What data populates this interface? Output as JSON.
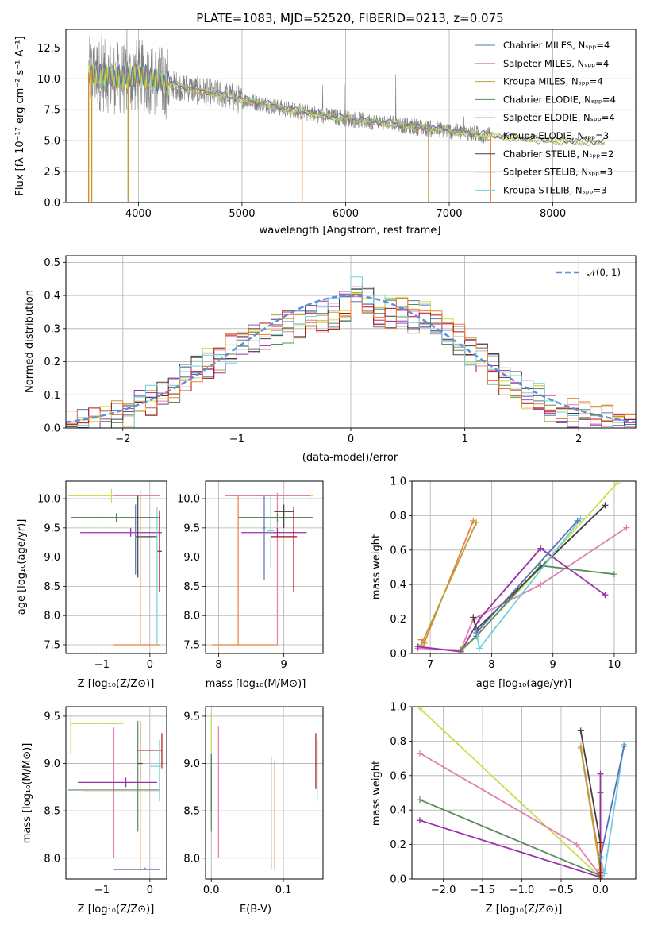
{
  "colors": {
    "grid": "#b0b0b0",
    "observed": "#808080",
    "normal_curve": "#5b8fdc",
    "models": [
      "#5a72b8",
      "#e07fb0",
      "#b8a040",
      "#5a8a5a",
      "#9a30a8",
      "#c8e050",
      "#404040",
      "#b01010",
      "#70d0d8",
      "#e8803a"
    ]
  },
  "chart_data": [
    {
      "id": "spectrum",
      "type": "line",
      "title": "PLATE=1083, MJD=52520, FIBERID=0213, z=0.075",
      "xlabel": "wavelength [Angstrom, rest frame]",
      "ylabel": "Flux [fλ 10⁻¹⁷ erg cm⁻² s⁻¹ A⁻¹]",
      "xlim": [
        3300,
        8800
      ],
      "ylim": [
        0,
        14
      ],
      "xticks": [
        "4000",
        "5000",
        "6000",
        "7000",
        "8000"
      ],
      "xtick_values": [
        4000,
        5000,
        6000,
        7000,
        8000
      ],
      "yticks": [
        "0.0",
        "2.5",
        "5.0",
        "7.5",
        "10.0",
        "12.5"
      ],
      "ytick_values": [
        0,
        2.5,
        5,
        7.5,
        10,
        12.5
      ],
      "legend_position": "top-right",
      "legend": [
        "Chabrier MILES, Nₛₚₚ=4",
        "Salpeter MILES, Nₛₚₚ=4",
        "Kroupa MILES, Nₛₚₚ=4",
        "Chabrier ELODIE, Nₛₚₚ=4",
        "Salpeter ELODIE, Nₛₚₚ=4",
        "Kroupa ELODIE, Nₛₚₚ=3",
        "Chabrier STELIB, Nₛₚₚ=2",
        "Salpeter STELIB, Nₛₚₚ=3",
        "Kroupa STELIB, Nₛₚₚ=3"
      ],
      "model_continuum": {
        "x": [
          3520,
          3700,
          3900,
          4000,
          4200,
          4400,
          4600,
          4800,
          5000,
          5200,
          5400,
          5600,
          5800,
          6000,
          6200,
          6400,
          6600,
          6800,
          7000,
          7200,
          7400,
          7600,
          7800,
          8000,
          8200,
          8400,
          8500
        ],
        "y": [
          10.5,
          10.2,
          10.0,
          10.3,
          9.8,
          9.4,
          9.0,
          8.7,
          8.3,
          8.0,
          7.6,
          7.3,
          7.0,
          6.8,
          6.6,
          6.4,
          6.2,
          6.0,
          5.8,
          5.6,
          5.4,
          5.25,
          5.15,
          5.0,
          4.95,
          4.9,
          4.85
        ]
      },
      "model_range": [
        3520,
        8500
      ],
      "observed_range": [
        3520,
        7400
      ],
      "drop_lines": [
        {
          "x": 3520,
          "color": 9
        },
        {
          "x": 3550,
          "color": 2
        },
        {
          "x": 3900,
          "color": 2
        },
        {
          "x": 5580,
          "color": 9
        },
        {
          "x": 6800,
          "color": 2
        },
        {
          "x": 7400,
          "color": 9
        }
      ]
    },
    {
      "id": "residuals",
      "type": "step",
      "xlabel": "(data-model)/error",
      "ylabel": "Normed distribution",
      "xlim": [
        -2.5,
        2.5
      ],
      "ylim": [
        0,
        0.52
      ],
      "xticks": [
        "−2",
        "−1",
        "0",
        "1",
        "2"
      ],
      "xtick_values": [
        -2,
        -1,
        0,
        1,
        2
      ],
      "yticks": [
        "0.0",
        "0.1",
        "0.2",
        "0.3",
        "0.4",
        "0.5"
      ],
      "ytick_values": [
        0,
        0.1,
        0.2,
        0.3,
        0.4,
        0.5
      ],
      "legend_position": "top-right",
      "legend": [
        "𝒩(0, 1)"
      ],
      "bin_width": 0.1,
      "bin_start": -2.5,
      "base_hist": [
        0.03,
        0.035,
        0.04,
        0.05,
        0.06,
        0.07,
        0.09,
        0.11,
        0.13,
        0.15,
        0.18,
        0.2,
        0.22,
        0.24,
        0.26,
        0.28,
        0.29,
        0.3,
        0.32,
        0.33,
        0.34,
        0.35,
        0.36,
        0.37,
        0.39,
        0.44,
        0.4,
        0.38,
        0.37,
        0.37,
        0.36,
        0.36,
        0.34,
        0.32,
        0.29,
        0.26,
        0.23,
        0.2,
        0.17,
        0.15,
        0.13,
        0.11,
        0.09,
        0.08,
        0.07,
        0.06,
        0.05,
        0.045,
        0.035,
        0.03
      ]
    },
    {
      "id": "age_vs_Z",
      "type": "errorbar",
      "xlabel": "Z [log₁₀(Z/Z⊙)]",
      "ylabel": "age  [log₁₀(age/yr)]",
      "xlim": [
        -1.75,
        0.35
      ],
      "ylim": [
        7.35,
        10.3
      ],
      "xticks": [
        "−1",
        "0"
      ],
      "xtick_values": [
        -1,
        0
      ],
      "yticks": [
        "7.5",
        "8.0",
        "8.5",
        "9.0",
        "9.5",
        "10.0"
      ],
      "ytick_values": [
        7.5,
        8,
        8.5,
        9,
        9.5,
        10
      ],
      "items": [
        {
          "c": 5,
          "x": -0.8,
          "y": 10.05,
          "xl": -1.7,
          "xh": 0.1,
          "yl": 9.93,
          "yh": 10.17
        },
        {
          "c": 1,
          "x": -0.2,
          "y": 10.05,
          "xl": -0.75,
          "xh": 0.2,
          "yl": 7.5,
          "yh": 10.15
        },
        {
          "c": 3,
          "x": -0.7,
          "y": 9.68,
          "xl": -1.65,
          "xh": 0.2,
          "yl": 9.6,
          "yh": 9.75
        },
        {
          "c": 4,
          "x": -0.4,
          "y": 9.42,
          "xl": -1.45,
          "xh": 0.25,
          "yl": 9.35,
          "yh": 9.5
        },
        {
          "c": 6,
          "x": -0.25,
          "y": 9.35,
          "xl": -0.3,
          "xh": 0.15,
          "yl": 8.65,
          "yh": 10.05
        },
        {
          "c": 7,
          "x": 0.2,
          "y": 9.1,
          "xl": 0.15,
          "xh": 0.25,
          "yl": 8.4,
          "yh": 9.8
        },
        {
          "c": 9,
          "x": -0.2,
          "y": 7.5,
          "xl": -0.75,
          "xh": 0.2,
          "yl": 7.5,
          "yh": 10.05
        },
        {
          "c": 8,
          "x": 0.15,
          "y": 9.0,
          "xl": 0.1,
          "xh": 0.2,
          "yl": 7.5,
          "yh": 9.85
        },
        {
          "c": 0,
          "x": -0.3,
          "y": 9.6,
          "xl": -0.32,
          "xh": -0.28,
          "yl": 8.7,
          "yh": 9.9
        }
      ]
    },
    {
      "id": "age_vs_mass",
      "type": "errorbar",
      "xlabel": "mass [log₁₀(M/M⊙)]",
      "ylabel": "",
      "xlim": [
        7.8,
        9.6
      ],
      "ylim": [
        7.35,
        10.3
      ],
      "xticks": [
        "8",
        "9"
      ],
      "xtick_values": [
        8,
        9
      ],
      "yticks": [
        "7.5",
        "8.0",
        "8.5",
        "9.0",
        "9.5",
        "10.0"
      ],
      "ytick_values": [
        7.5,
        8,
        8.5,
        9,
        9.5,
        10
      ],
      "items": [
        {
          "c": 5,
          "x": 9.4,
          "y": 10.05,
          "xl": 9.35,
          "xh": 9.45,
          "yl": 9.95,
          "yh": 10.15
        },
        {
          "c": 1,
          "x": 8.9,
          "y": 10.05,
          "xl": 8.1,
          "xh": 9.4,
          "yl": 7.5,
          "yh": 10.1
        },
        {
          "c": 3,
          "x": 8.9,
          "y": 9.68,
          "xl": 8.3,
          "xh": 9.45,
          "yl": 9.6,
          "yh": 9.75
        },
        {
          "c": 4,
          "x": 8.9,
          "y": 9.42,
          "xl": 8.35,
          "xh": 9.35,
          "yl": 9.35,
          "yh": 9.5
        },
        {
          "c": 6,
          "x": 9.0,
          "y": 9.78,
          "xl": 8.85,
          "xh": 9.15,
          "yl": 9.5,
          "yh": 9.9
        },
        {
          "c": 7,
          "x": 9.15,
          "y": 9.35,
          "xl": 8.8,
          "xh": 9.2,
          "yl": 8.4,
          "yh": 9.85
        },
        {
          "c": 9,
          "x": 8.3,
          "y": 7.5,
          "xl": 7.9,
          "xh": 8.9,
          "yl": 7.5,
          "yh": 10.05
        },
        {
          "c": 8,
          "x": 8.8,
          "y": 9.45,
          "xl": 8.75,
          "xh": 8.85,
          "yl": 8.8,
          "yh": 10.05
        },
        {
          "c": 0,
          "x": 8.7,
          "y": 9.5,
          "xl": 8.68,
          "xh": 8.72,
          "yl": 8.6,
          "yh": 10.05
        }
      ]
    },
    {
      "id": "weight_vs_age",
      "type": "line",
      "xlabel": "age  [log₁₀(age/yr)]",
      "ylabel": "mass weight",
      "xlim": [
        6.7,
        10.35
      ],
      "ylim": [
        0,
        1.0
      ],
      "xticks": [
        "7",
        "8",
        "9",
        "10"
      ],
      "xtick_values": [
        7,
        8,
        9,
        10
      ],
      "yticks": [
        "0.0",
        "0.2",
        "0.4",
        "0.6",
        "0.8",
        "1.0"
      ],
      "ytick_values": [
        0,
        0.2,
        0.4,
        0.6,
        0.8,
        1.0
      ],
      "series": [
        {
          "c": 9,
          "x": [
            6.85,
            6.9,
            7.7
          ],
          "y": [
            0.08,
            0.06,
            0.77
          ]
        },
        {
          "c": 2,
          "x": [
            6.85,
            7.75
          ],
          "y": [
            0.05,
            0.76
          ]
        },
        {
          "c": 5,
          "x": [
            7.5,
            7.75,
            8.8,
            10.05
          ],
          "y": [
            0.01,
            0.1,
            0.5,
            0.99
          ]
        },
        {
          "c": 1,
          "x": [
            6.8,
            7.5,
            7.7,
            8.8,
            10.2
          ],
          "y": [
            0.03,
            0.02,
            0.2,
            0.4,
            0.73
          ]
        },
        {
          "c": 4,
          "x": [
            6.8,
            7.5,
            7.8,
            8.8,
            9.85
          ],
          "y": [
            0.04,
            0.01,
            0.2,
            0.61,
            0.34
          ]
        },
        {
          "c": 3,
          "x": [
            7.5,
            7.75,
            8.8,
            10.0
          ],
          "y": [
            0.02,
            0.1,
            0.51,
            0.46
          ]
        },
        {
          "c": 6,
          "x": [
            7.7,
            7.75,
            9.85
          ],
          "y": [
            0.21,
            0.14,
            0.86
          ]
        },
        {
          "c": 8,
          "x": [
            7.75,
            7.8,
            9.45
          ],
          "y": [
            0.13,
            0.03,
            0.78
          ]
        },
        {
          "c": 0,
          "x": [
            7.75,
            9.4
          ],
          "y": [
            0.12,
            0.77
          ]
        }
      ]
    },
    {
      "id": "mass_vs_Z",
      "type": "errorbar",
      "xlabel": "Z [log₁₀(Z/Z⊙)]",
      "ylabel": "mass [log₁₀(M/M⊙)]",
      "xlim": [
        -1.75,
        0.35
      ],
      "ylim": [
        7.78,
        9.6
      ],
      "xticks": [
        "−1",
        "0"
      ],
      "xtick_values": [
        -1,
        0
      ],
      "yticks": [
        "8.0",
        "8.5",
        "9.0",
        "9.5"
      ],
      "ytick_values": [
        8,
        8.5,
        9,
        9.5
      ],
      "items": [
        {
          "c": 5,
          "x": -1.65,
          "y": 9.42,
          "xl": -1.65,
          "xh": -0.55,
          "yl": 9.1,
          "yh": 9.52
        },
        {
          "c": 1,
          "x": -0.75,
          "y": 8.7,
          "xl": -1.4,
          "xh": 0.2,
          "yl": 8.0,
          "yh": 9.38
        },
        {
          "c": 3,
          "x": -0.25,
          "y": 8.72,
          "xl": -1.7,
          "xh": 0.2,
          "yl": 8.28,
          "yh": 9.45
        },
        {
          "c": 4,
          "x": -0.5,
          "y": 8.8,
          "xl": -1.5,
          "xh": 0.15,
          "yl": 8.75,
          "yh": 8.85
        },
        {
          "c": 6,
          "x": -0.2,
          "y": 9.0,
          "xl": -0.25,
          "xh": -0.15,
          "yl": 8.8,
          "yh": 9.45
        },
        {
          "c": 7,
          "x": 0.25,
          "y": 9.14,
          "xl": -0.25,
          "xh": 0.25,
          "yl": 8.95,
          "yh": 9.32
        },
        {
          "c": 9,
          "x": -0.2,
          "y": 7.88,
          "xl": -0.75,
          "xh": 0.2,
          "yl": 7.88,
          "yh": 9.45
        },
        {
          "c": 8,
          "x": 0.2,
          "y": 8.97,
          "xl": 0.0,
          "xh": 0.25,
          "yl": 8.6,
          "yh": 9.25
        },
        {
          "c": 0,
          "x": -0.1,
          "y": 7.88,
          "xl": -0.75,
          "xh": 0.2,
          "yl": 7.88,
          "yh": 7.9
        }
      ]
    },
    {
      "id": "mass_vs_EBV",
      "type": "errorbar",
      "xlabel": "E(B-V)",
      "ylabel": "",
      "xlim": [
        -0.008,
        0.155
      ],
      "ylim": [
        7.78,
        9.6
      ],
      "xticks": [
        "0.0",
        "0.1"
      ],
      "xtick_values": [
        0,
        0.1
      ],
      "yticks": [
        "8.0",
        "8.5",
        "9.0",
        "9.5"
      ],
      "ytick_values": [
        8,
        8.5,
        9,
        9.5
      ],
      "items": [
        {
          "c": 5,
          "x": 0.0,
          "y": 9.3,
          "xl": 0.0,
          "xh": 0.0,
          "yl": 9.0,
          "yh": 9.5
        },
        {
          "c": 4,
          "x": 0.0,
          "y": 8.8,
          "xl": 0.0,
          "xh": 0.0,
          "yl": 8.5,
          "yh": 9.1
        },
        {
          "c": 1,
          "x": 0.01,
          "y": 8.7,
          "xl": 0.01,
          "xh": 0.01,
          "yl": 8.0,
          "yh": 9.4
        },
        {
          "c": 3,
          "x": 0.0,
          "y": 8.72,
          "xl": 0.0,
          "xh": 0.0,
          "yl": 8.28,
          "yh": 9.1
        },
        {
          "c": 0,
          "x": 0.083,
          "y": 8.5,
          "xl": 0.083,
          "xh": 0.083,
          "yl": 7.88,
          "yh": 9.07
        },
        {
          "c": 9,
          "x": 0.088,
          "y": 8.5,
          "xl": 0.088,
          "xh": 0.088,
          "yl": 7.88,
          "yh": 9.03
        },
        {
          "c": 7,
          "x": 0.145,
          "y": 9.0,
          "xl": 0.145,
          "xh": 0.145,
          "yl": 8.73,
          "yh": 9.32
        },
        {
          "c": 8,
          "x": 0.147,
          "y": 8.9,
          "xl": 0.147,
          "xh": 0.147,
          "yl": 8.6,
          "yh": 9.25
        }
      ]
    },
    {
      "id": "weight_vs_Z",
      "type": "line",
      "xlabel": "Z [log₁₀(Z/Z⊙)]",
      "ylabel": "mass weight",
      "xlim": [
        -2.4,
        0.45
      ],
      "ylim": [
        0,
        1.0
      ],
      "xticks": [
        "−2.0",
        "−1.5",
        "−1.0",
        "−0.5",
        "0.0"
      ],
      "xtick_values": [
        -2,
        -1.5,
        -1,
        -0.5,
        0
      ],
      "yticks": [
        "0.0",
        "0.2",
        "0.4",
        "0.6",
        "0.8",
        "1.0"
      ],
      "ytick_values": [
        0,
        0.2,
        0.4,
        0.6,
        0.8,
        1.0
      ],
      "series": [
        {
          "c": 5,
          "x": [
            -2.3,
            0.0,
            0.0
          ],
          "y": [
            0.99,
            0.01,
            0.0
          ]
        },
        {
          "c": 1,
          "x": [
            -2.3,
            -0.3,
            0.0,
            0.0
          ],
          "y": [
            0.73,
            0.2,
            0.02,
            0.03
          ]
        },
        {
          "c": 3,
          "x": [
            -2.3,
            0.0,
            0.0
          ],
          "y": [
            0.46,
            0.02,
            0.5
          ]
        },
        {
          "c": 4,
          "x": [
            -2.3,
            0.0,
            0.0,
            0.0
          ],
          "y": [
            0.34,
            0.01,
            0.61,
            0.04
          ]
        },
        {
          "c": 6,
          "x": [
            -0.25,
            0.0,
            0.0
          ],
          "y": [
            0.86,
            0.21,
            0.01
          ]
        },
        {
          "c": 9,
          "x": [
            -0.25,
            0.0,
            0.0
          ],
          "y": [
            0.77,
            0.08,
            0.06
          ]
        },
        {
          "c": 2,
          "x": [
            -0.25,
            0.0
          ],
          "y": [
            0.76,
            0.05
          ]
        },
        {
          "c": 7,
          "x": [
            0.0,
            0.0
          ],
          "y": [
            0.21,
            0.0
          ]
        },
        {
          "c": 8,
          "x": [
            0.0,
            0.05,
            0.3
          ],
          "y": [
            0.13,
            0.03,
            0.78
          ]
        },
        {
          "c": 0,
          "x": [
            0.0,
            0.3
          ],
          "y": [
            0.12,
            0.77
          ]
        }
      ]
    }
  ]
}
